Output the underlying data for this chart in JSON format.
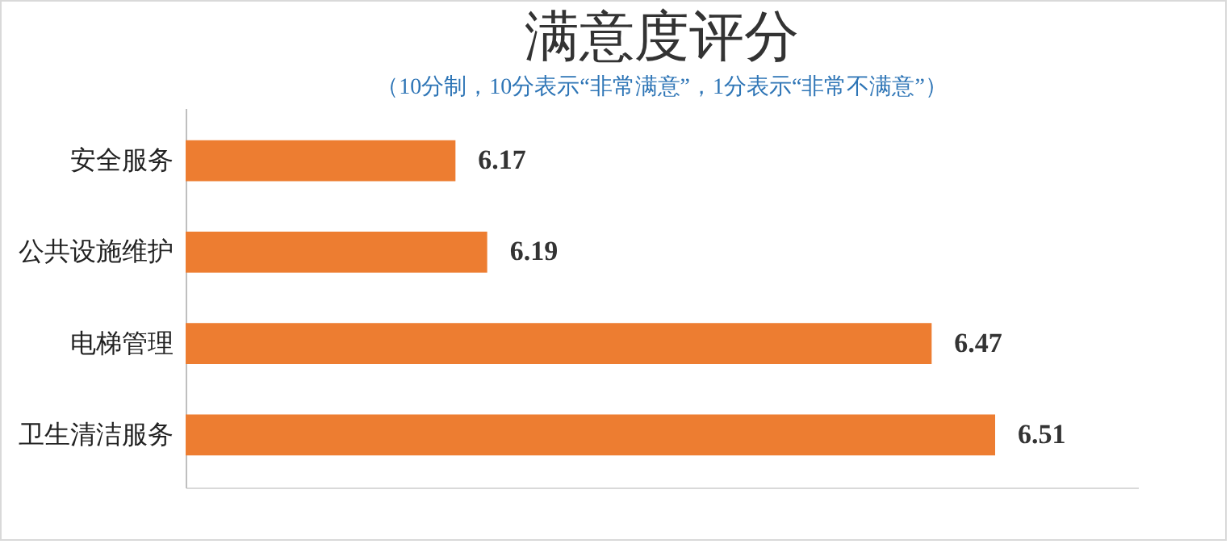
{
  "chart_data": {
    "type": "bar",
    "orientation": "horizontal",
    "title": "满意度评分",
    "subtitle": "（10分制，10分表示“非常满意”，1分表示“非常不满意”）",
    "categories": [
      "安全服务",
      "公共设施维护",
      "电梯管理",
      "卫生清洁服务"
    ],
    "values": [
      6.17,
      6.19,
      6.47,
      6.51
    ],
    "color": "#ed7d31",
    "xlim": [
      6.0,
      6.6
    ],
    "data_labels": true,
    "tick_labels": "y"
  }
}
